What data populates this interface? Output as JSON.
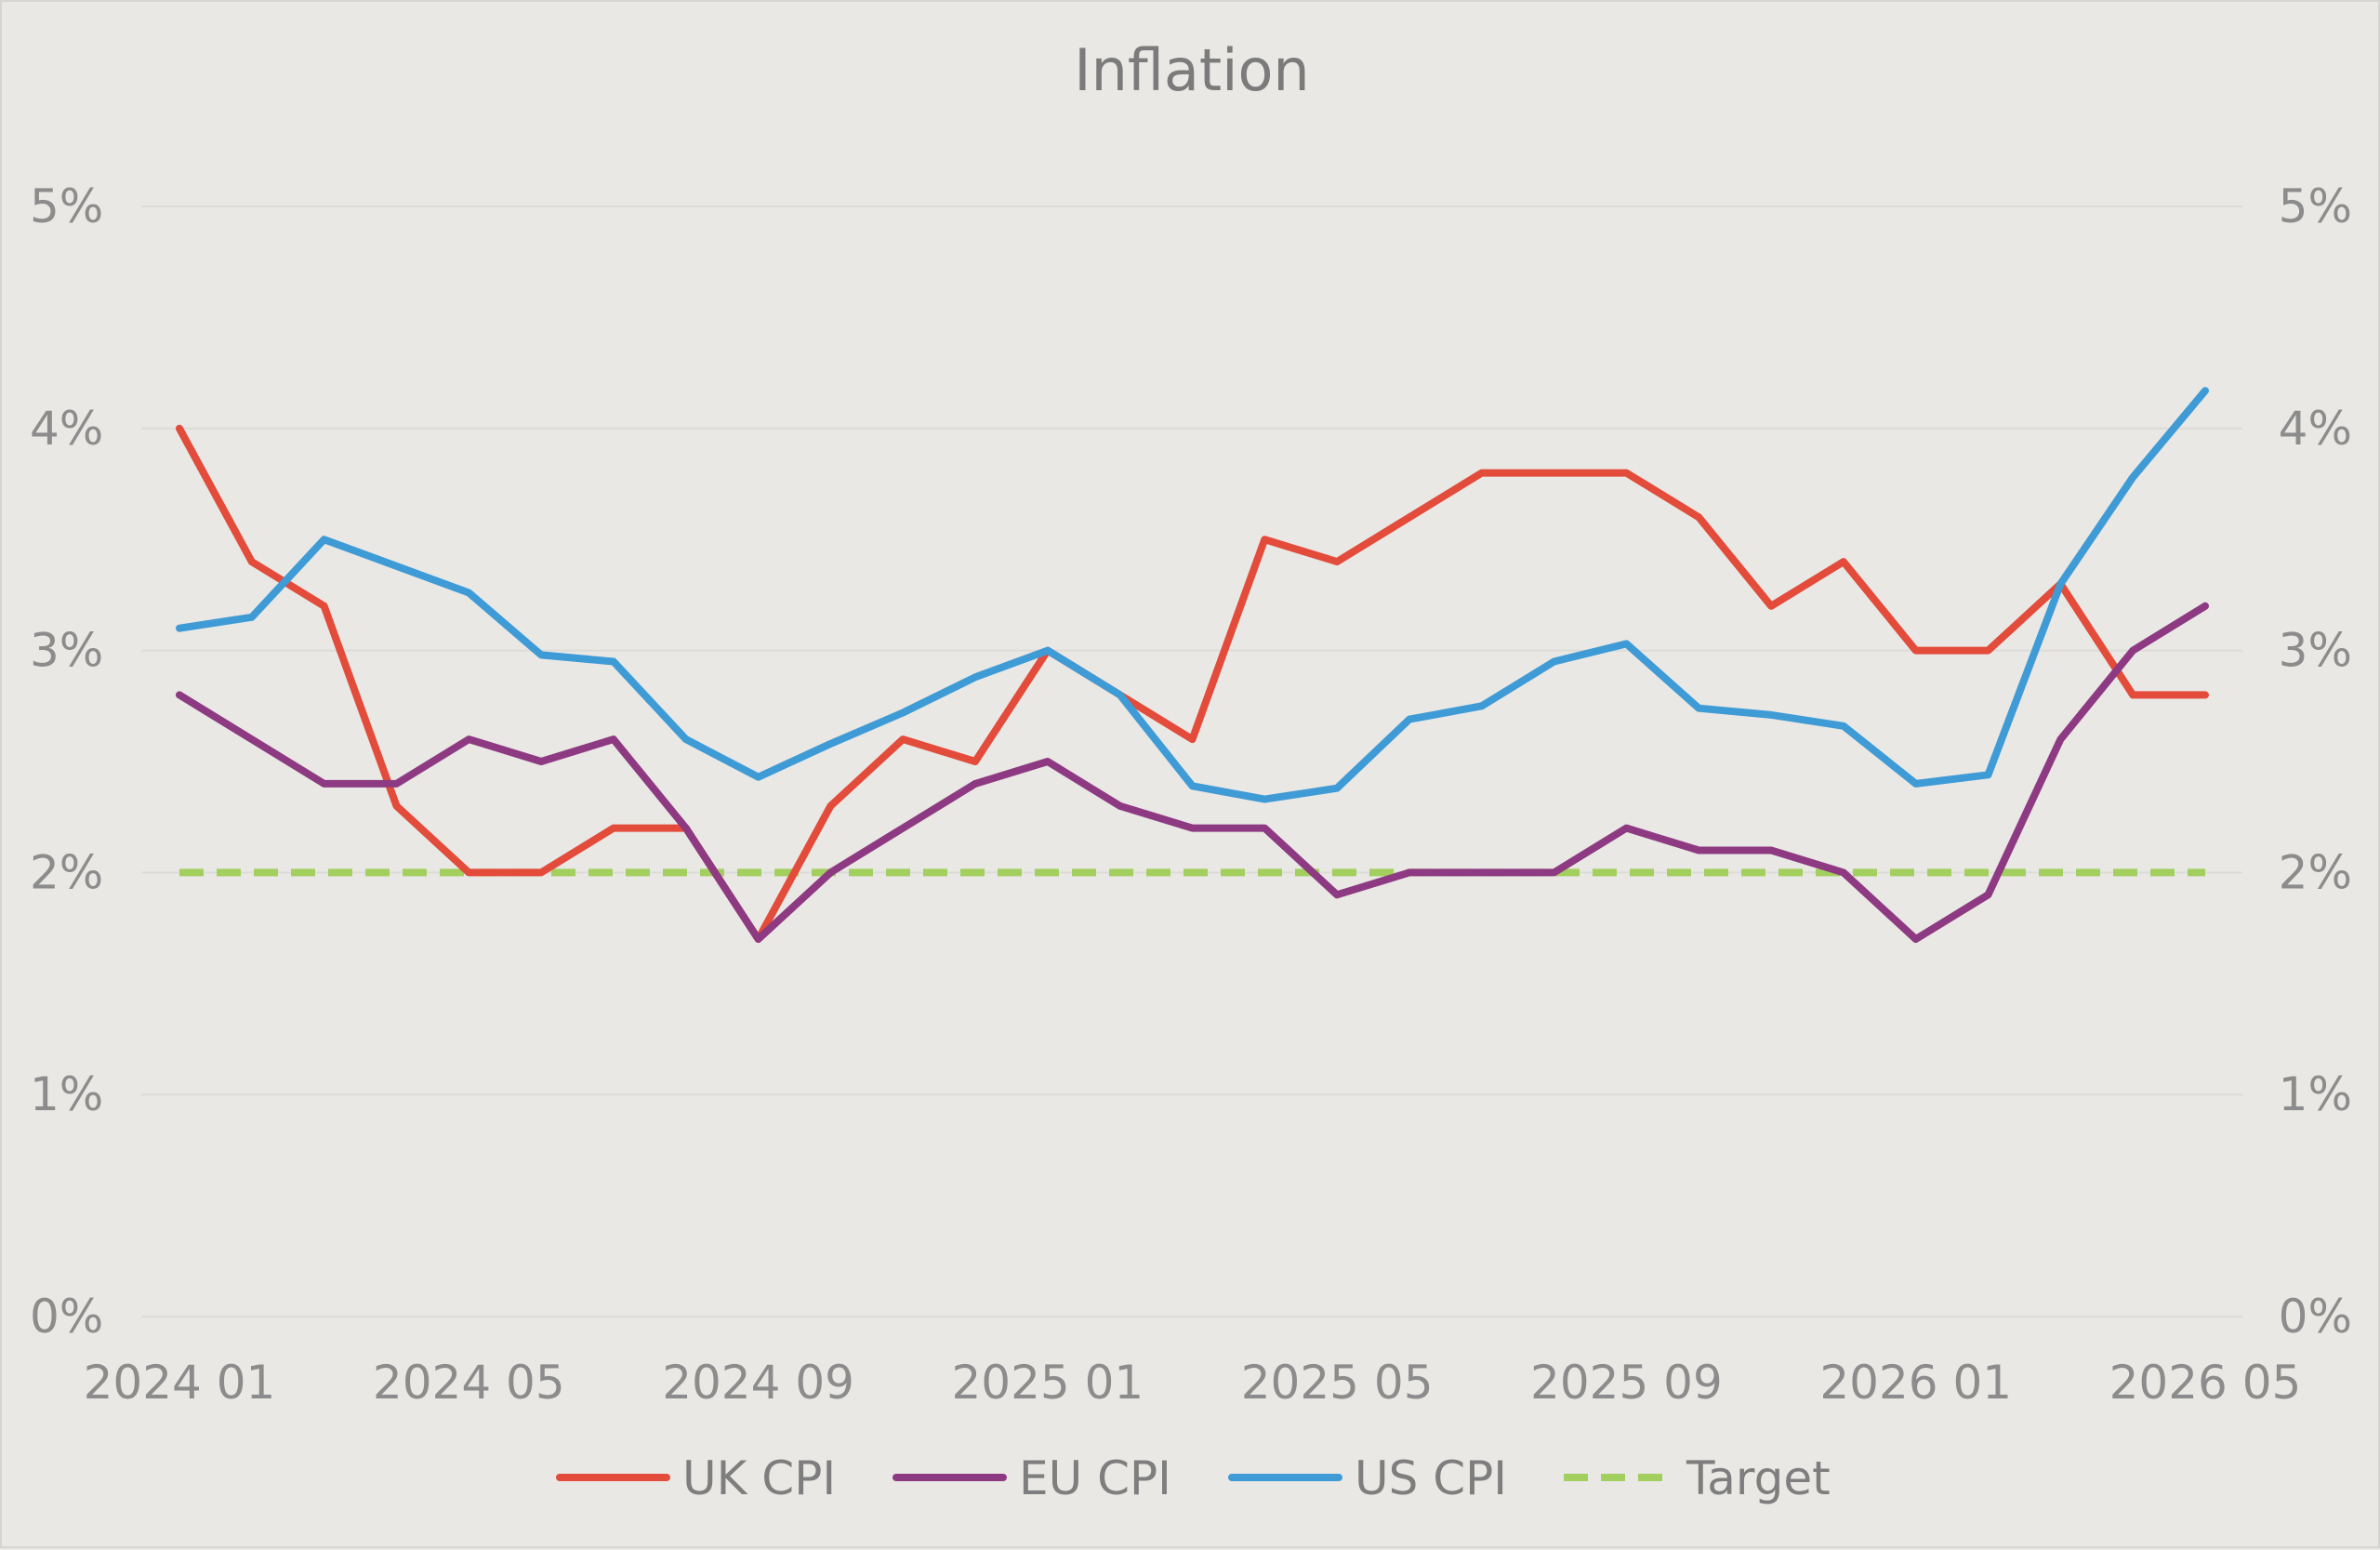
{
  "chart_data": {
    "type": "line",
    "title": "Inflation",
    "xlabel": "",
    "ylabel": "",
    "ylim": [
      0,
      5
    ],
    "yticks": [
      "0%",
      "1%",
      "2%",
      "3%",
      "4%",
      "5%"
    ],
    "secondary_y_axis": true,
    "x_tick_labels": [
      "2024 01",
      "2024 05",
      "2024 09",
      "2025 01",
      "2025 05",
      "2025 09",
      "2026 01",
      "2026 05"
    ],
    "x": [
      "2024 01",
      "2024 02",
      "2024 03",
      "2024 04",
      "2024 05",
      "2024 06",
      "2024 07",
      "2024 08",
      "2024 09",
      "2024 10",
      "2024 11",
      "2024 12",
      "2025 01",
      "2025 02",
      "2025 03",
      "2025 04",
      "2025 05",
      "2025 06",
      "2025 07",
      "2025 08",
      "2025 09",
      "2025 10",
      "2025 11",
      "2025 12",
      "2026 01",
      "2026 02",
      "2026 03",
      "2026 04",
      "2026 05"
    ],
    "grid": true,
    "legend_position": "bottom",
    "series": [
      {
        "name": "UK CPI",
        "color": "#e34b3a",
        "dash": false,
        "values": [
          4.0,
          3.4,
          3.2,
          2.3,
          2.0,
          2.0,
          2.2,
          2.2,
          1.7,
          2.3,
          2.6,
          2.5,
          3.0,
          2.8,
          2.6,
          3.5,
          3.4,
          3.6,
          3.8,
          3.8,
          3.8,
          3.6,
          3.2,
          3.4,
          3.0,
          3.0,
          3.3,
          2.8,
          2.8
        ]
      },
      {
        "name": "EU CPI",
        "color": "#8e3a82",
        "dash": false,
        "values": [
          2.8,
          2.6,
          2.4,
          2.4,
          2.6,
          2.5,
          2.6,
          2.2,
          1.7,
          2.0,
          2.2,
          2.4,
          2.5,
          2.3,
          2.2,
          2.2,
          1.9,
          2.0,
          2.0,
          2.0,
          2.2,
          2.1,
          2.1,
          2.0,
          1.7,
          1.9,
          2.6,
          3.0,
          3.2
        ]
      },
      {
        "name": "US CPI",
        "color": "#3f9bd6",
        "dash": false,
        "values": [
          3.1,
          3.15,
          3.5,
          3.38,
          3.26,
          2.98,
          2.95,
          2.6,
          2.43,
          2.58,
          2.72,
          2.88,
          3.0,
          2.8,
          2.39,
          2.33,
          2.38,
          2.69,
          2.75,
          2.95,
          3.03,
          2.74,
          2.71,
          2.66,
          2.4,
          2.44,
          3.3,
          3.78,
          4.17
        ]
      },
      {
        "name": "Target",
        "color": "#a3cf5e",
        "dash": true,
        "values": [
          2,
          2,
          2,
          2,
          2,
          2,
          2,
          2,
          2,
          2,
          2,
          2,
          2,
          2,
          2,
          2,
          2,
          2,
          2,
          2,
          2,
          2,
          2,
          2,
          2,
          2,
          2,
          2,
          2
        ]
      }
    ]
  }
}
